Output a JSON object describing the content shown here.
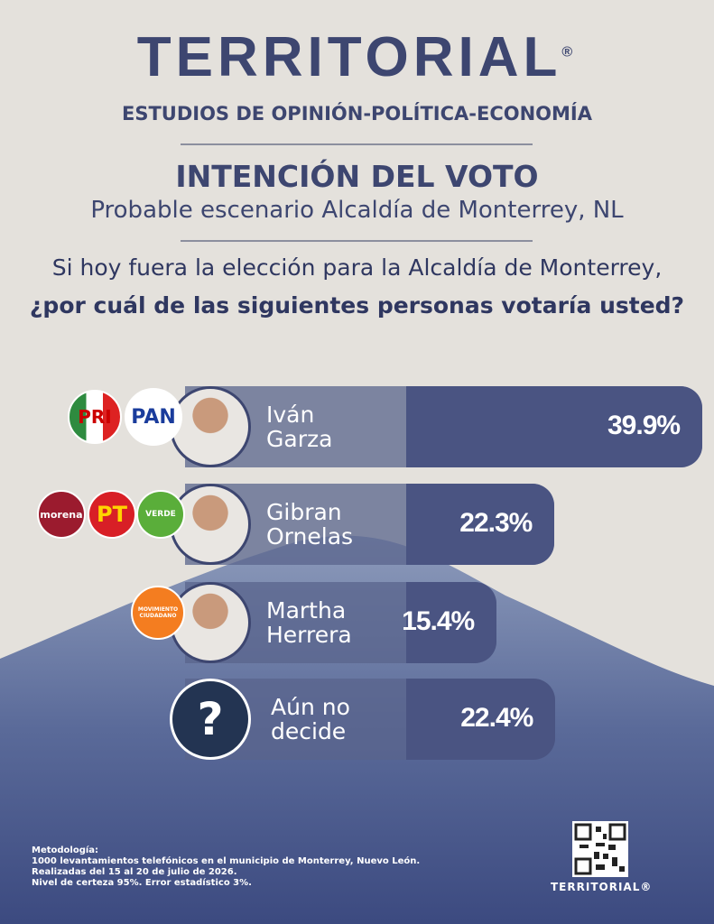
{
  "header": {
    "brand": "TERRITORIAL",
    "registered": "®",
    "tagline": "ESTUDIOS DE OPINIÓN-POLÍTICA-ECONOMÍA"
  },
  "chart_data": {
    "type": "bar",
    "title": "INTENCIÓN DEL VOTO",
    "subtitle": "Probable escenario Alcaldía de Monterrey, NL",
    "question": [
      "Si hoy fuera la elección para la Alcaldía de Monterrey,",
      "¿por cuál de las siguientes personas votaría usted?"
    ],
    "categories": [
      "Iván Garza",
      "Gibran Ornelas",
      "Martha Herrera",
      "Aún no decide"
    ],
    "values": [
      39.9,
      22.3,
      15.4,
      22.4
    ],
    "value_labels": [
      "39.9%",
      "22.3%",
      "15.4%",
      "22.4%"
    ],
    "color": "#4a5482",
    "parties": [
      [
        "PRI",
        "PAN"
      ],
      [
        "morena",
        "PT",
        "VERDE"
      ],
      [
        "MOVIMIENTO CIUDADANO"
      ]
    ],
    "undecided_icon": "?"
  },
  "methodology": [
    "Metodología:",
    "1000 levantamientos telefónicos en el municipio de Monterrey, Nuevo León.",
    "Realizadas del 15 al 20 de julio de 2026.",
    "Nivel de certeza 95%. Error estadístico 3%."
  ],
  "footer": {
    "brand": "TERRITORIAL®"
  }
}
